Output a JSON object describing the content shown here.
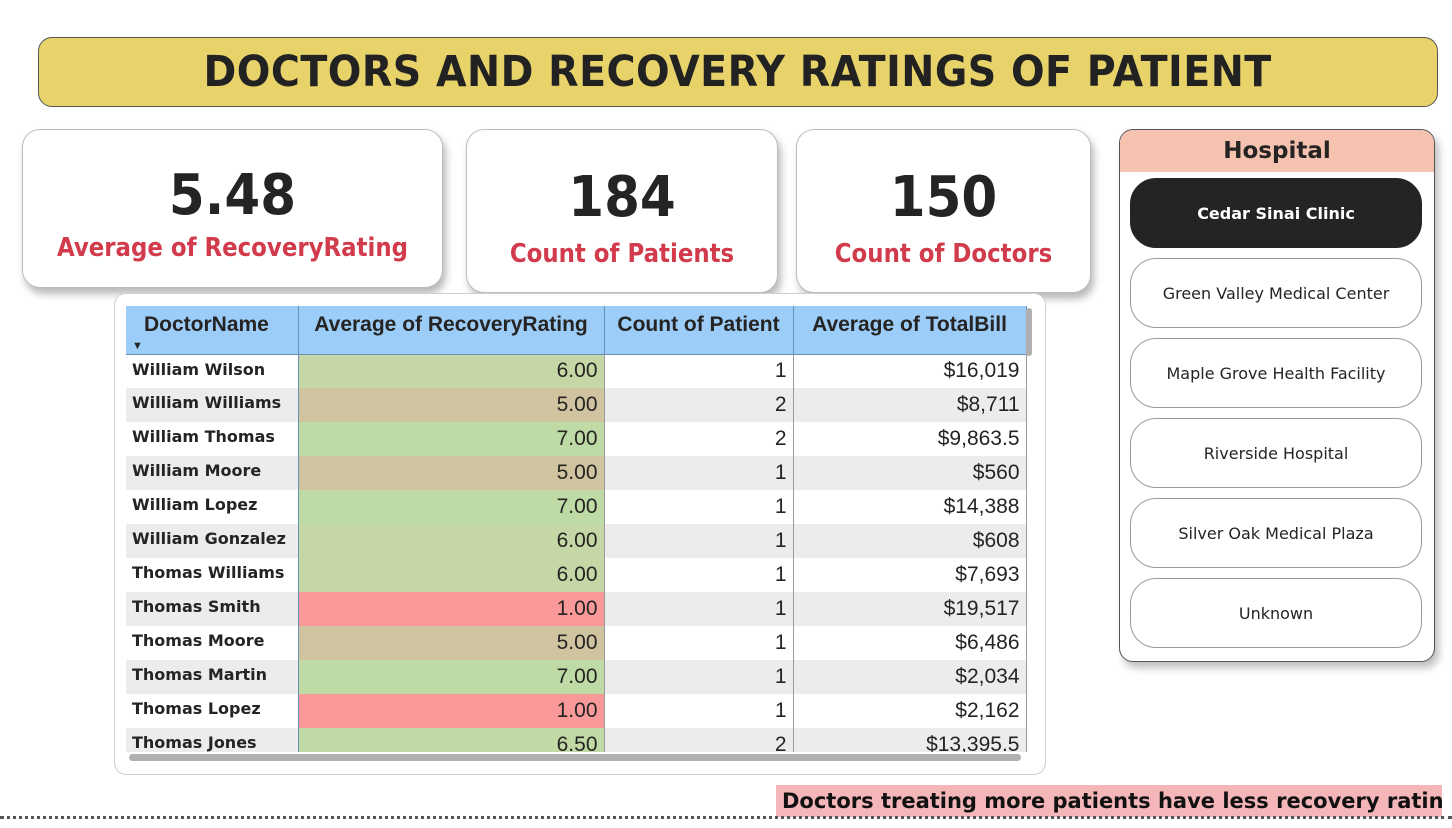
{
  "title": "DOCTORS AND RECOVERY RATINGS OF PATIENT",
  "kpis": [
    {
      "value": "5.48",
      "label": "Average of RecoveryRating"
    },
    {
      "value": "184",
      "label": "Count of Patients"
    },
    {
      "value": "150",
      "label": "Count of Doctors"
    }
  ],
  "table": {
    "columns": [
      "DoctorName",
      "Average of RecoveryRating",
      "Count of Patient",
      "Average of TotalBill"
    ],
    "sort_icon": "sort-descending-icon",
    "rows": [
      {
        "name": "William Wilson",
        "rating": "6.00",
        "count": "1",
        "bill": "$16,019",
        "color": "#c5d7a5"
      },
      {
        "name": "William Williams",
        "rating": "5.00",
        "count": "2",
        "bill": "$8,711",
        "color": "#cfc49f"
      },
      {
        "name": "William Thomas",
        "rating": "7.00",
        "count": "2",
        "bill": "$9,863.5",
        "color": "#bedaa5"
      },
      {
        "name": "William Moore",
        "rating": "5.00",
        "count": "1",
        "bill": "$560",
        "color": "#cfc49f"
      },
      {
        "name": "William Lopez",
        "rating": "7.00",
        "count": "1",
        "bill": "$14,388",
        "color": "#bedaa5"
      },
      {
        "name": "William Gonzalez",
        "rating": "6.00",
        "count": "1",
        "bill": "$608",
        "color": "#c5d7a5"
      },
      {
        "name": "Thomas Williams",
        "rating": "6.00",
        "count": "1",
        "bill": "$7,693",
        "color": "#c5d7a5"
      },
      {
        "name": "Thomas Smith",
        "rating": "1.00",
        "count": "1",
        "bill": "$19,517",
        "color": "#fa999a"
      },
      {
        "name": "Thomas Moore",
        "rating": "5.00",
        "count": "1",
        "bill": "$6,486",
        "color": "#cfc49f"
      },
      {
        "name": "Thomas Martin",
        "rating": "7.00",
        "count": "1",
        "bill": "$2,034",
        "color": "#bedaa5"
      },
      {
        "name": "Thomas Lopez",
        "rating": "1.00",
        "count": "1",
        "bill": "$2,162",
        "color": "#fa999a"
      },
      {
        "name": "Thomas Jones",
        "rating": "6.50",
        "count": "2",
        "bill": "$13,395.5",
        "color": "#c1d9a5"
      }
    ]
  },
  "slicer": {
    "title": "Hospital",
    "items": [
      {
        "label": "Cedar Sinai Clinic",
        "selected": true
      },
      {
        "label": "Green Valley Medical Center",
        "selected": false
      },
      {
        "label": "Maple Grove Health Facility",
        "selected": false
      },
      {
        "label": "Riverside Hospital",
        "selected": false
      },
      {
        "label": "Silver Oak Medical Plaza",
        "selected": false
      },
      {
        "label": "Unknown",
        "selected": false
      }
    ]
  },
  "note": "Doctors treating more patients have less recovery ratings."
}
